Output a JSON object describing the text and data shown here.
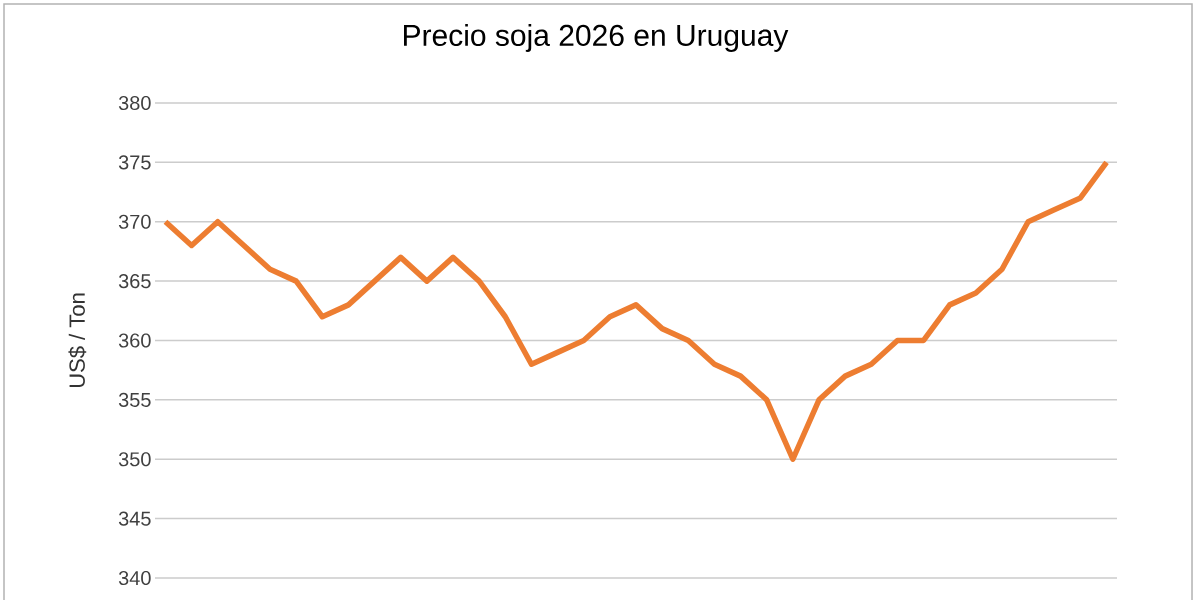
{
  "chart_data": {
    "type": "line",
    "title": "Precio soja 2026 en Uruguay",
    "ylabel": "US$ / Ton",
    "categories": [
      null,
      null,
      null,
      null,
      null,
      null,
      null,
      null,
      null,
      null,
      null,
      null,
      null,
      null,
      null,
      null,
      null,
      null,
      null,
      null,
      null,
      null,
      null,
      null,
      null,
      null,
      null,
      null,
      null,
      null,
      null,
      null,
      null,
      null,
      null,
      null,
      null
    ],
    "series": [
      {
        "color": "#ed7d31",
        "values": [
          370,
          368,
          370,
          368,
          366,
          365,
          362,
          363,
          365,
          367,
          365,
          367,
          365,
          362,
          358,
          359,
          360,
          362,
          363,
          361,
          360,
          358,
          357,
          355,
          350,
          355,
          357,
          358,
          360,
          360,
          363,
          364,
          366,
          370,
          371,
          372,
          375
        ]
      }
    ],
    "ylim": [
      340,
      380
    ],
    "yticks": [
      340,
      345,
      350,
      355,
      360,
      365,
      370,
      375,
      380
    ],
    "grid": "y",
    "marker": "none",
    "line_style": "solid"
  }
}
